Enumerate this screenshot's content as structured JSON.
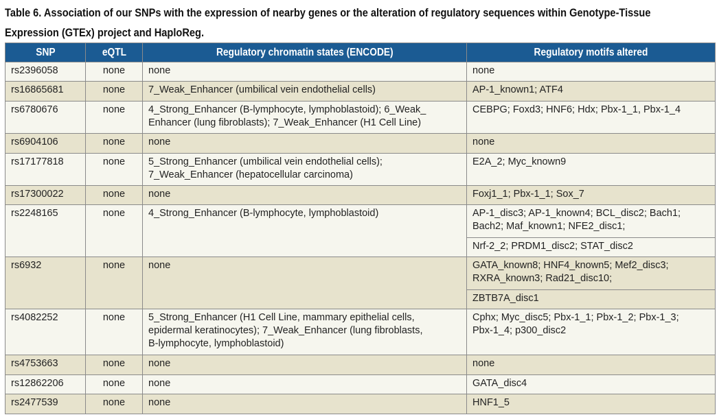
{
  "title": "Table 6. Association of our SNPs with the expression of nearby genes or the alteration of regulatory sequences within Genotype-Tissue Expression (GTEx) project and HaploReg.",
  "colors": {
    "header_bg": "#1b5b93",
    "row_light": "#f6f6ee",
    "row_dark": "#e7e3cd",
    "border": "#8a8a8a"
  },
  "headers": [
    "SNP",
    "eQTL",
    "Regulatory chromatin states (ENCODE)",
    "Regulatory motifs altered"
  ],
  "rows": [
    {
      "snp": "rs2396058",
      "eqtl": "none",
      "chromatin": "none",
      "motifs": [
        "none"
      ]
    },
    {
      "snp": "rs16865681",
      "eqtl": "none",
      "chromatin": "7_Weak_Enhancer (umbilical vein endothelial cells)",
      "motifs": [
        "AP-1_known1; ATF4"
      ]
    },
    {
      "snp": "rs6780676",
      "eqtl": "none",
      "chromatin": "4_Strong_Enhancer (B-lymphocyte, lymphoblastoid); 6_Weak_\nEnhancer (lung fibroblasts); 7_Weak_Enhancer (H1 Cell Line)",
      "motifs": [
        "CEBPG; Foxd3; HNF6; Hdx; Pbx-1_1, Pbx-1_4"
      ]
    },
    {
      "snp": "rs6904106",
      "eqtl": "none",
      "chromatin": "none",
      "motifs": [
        "none"
      ]
    },
    {
      "snp": "rs17177818",
      "eqtl": "none",
      "chromatin": "5_Strong_Enhancer (umbilical vein endothelial cells);\n7_Weak_Enhancer (hepatocellular carcinoma)",
      "motifs": [
        "E2A_2; Myc_known9"
      ]
    },
    {
      "snp": "rs17300022",
      "eqtl": "none",
      "chromatin": "none",
      "motifs": [
        "Foxj1_1; Pbx-1_1; Sox_7"
      ]
    },
    {
      "snp": "rs2248165",
      "eqtl": "none",
      "chromatin": "4_Strong_Enhancer (B-lymphocyte, lymphoblastoid)",
      "motifs": [
        "AP-1_disc3; AP-1_known4; BCL_disc2; Bach1;\nBach2; Maf_known1; NFE2_disc1;",
        "Nrf-2_2; PRDM1_disc2; STAT_disc2"
      ]
    },
    {
      "snp": "rs6932",
      "eqtl": "none",
      "chromatin": "none",
      "motifs": [
        "GATA_known8; HNF4_known5; Mef2_disc3;\nRXRA_known3; Rad21_disc10;",
        "ZBTB7A_disc1"
      ]
    },
    {
      "snp": "rs4082252",
      "eqtl": "none",
      "chromatin": "5_Strong_Enhancer (H1 Cell Line, mammary epithelial cells,\nepidermal keratinocytes); 7_Weak_Enhancer (lung fibroblasts,\nB-lymphocyte, lymphoblastoid)",
      "motifs": [
        "Cphx; Myc_disc5; Pbx-1_1; Pbx-1_2; Pbx-1_3;\nPbx-1_4; p300_disc2"
      ]
    },
    {
      "snp": "rs4753663",
      "eqtl": "none",
      "chromatin": "none",
      "motifs": [
        "none"
      ]
    },
    {
      "snp": "rs12862206",
      "eqtl": "none",
      "chromatin": "none",
      "motifs": [
        "GATA_disc4"
      ]
    },
    {
      "snp": "rs2477539",
      "eqtl": "none",
      "chromatin": "none",
      "motifs": [
        "HNF1_5"
      ]
    }
  ]
}
